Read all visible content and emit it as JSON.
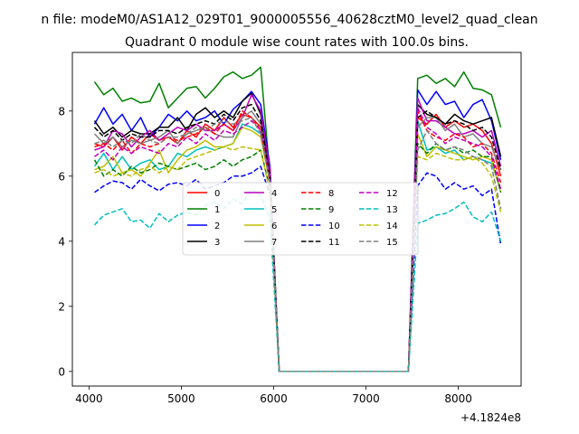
{
  "suptitle": "n file: modeM0/AS1A12_029T01_9000005556_40628cztM0_level2_quad_clean",
  "chart_data": {
    "type": "line",
    "title": "Quadrant 0 module wise count rates with 100.0s bins.",
    "xlabel": "",
    "ylabel": "",
    "offset_text": "+4.1824e8",
    "xlim": [
      3820,
      8680
    ],
    "ylim": [
      -0.45,
      9.8
    ],
    "xticks": [
      4000,
      5000,
      6000,
      7000,
      8000
    ],
    "yticks": [
      0,
      2,
      4,
      6,
      8
    ],
    "grid": false,
    "legend_position": "center",
    "x": [
      4060,
      4160,
      4260,
      4360,
      4460,
      4560,
      4660,
      4760,
      4860,
      4960,
      5060,
      5160,
      5260,
      5360,
      5460,
      5560,
      5660,
      5760,
      5860,
      5960,
      6060,
      6160,
      6260,
      6360,
      6460,
      6560,
      6660,
      6760,
      6860,
      6960,
      7060,
      7160,
      7260,
      7360,
      7460,
      7560,
      7660,
      7760,
      7860,
      7960,
      8060,
      8160,
      8260,
      8360,
      8460
    ],
    "series": [
      {
        "name": "0",
        "color": "#ff0000",
        "dash": "solid",
        "values": [
          7.0,
          6.9,
          7.2,
          6.8,
          7.2,
          7.0,
          7.3,
          7.1,
          7.2,
          7.0,
          7.4,
          7.2,
          7.6,
          7.4,
          7.8,
          7.5,
          7.9,
          7.8,
          7.5,
          5.9,
          0,
          0,
          0,
          0,
          0,
          0,
          0,
          0,
          0,
          0,
          0,
          0,
          0,
          0,
          0,
          7.8,
          7.6,
          7.9,
          7.5,
          7.7,
          7.5,
          7.6,
          7.4,
          7.0,
          6.0
        ]
      },
      {
        "name": "1",
        "color": "#008000",
        "dash": "solid",
        "values": [
          8.9,
          8.5,
          8.7,
          8.3,
          8.4,
          8.25,
          8.3,
          8.85,
          8.1,
          8.4,
          8.7,
          8.75,
          8.4,
          8.7,
          9.05,
          9.2,
          9.0,
          9.1,
          9.35,
          6.0,
          0,
          0,
          0,
          0,
          0,
          0,
          0,
          0,
          0,
          0,
          0,
          0,
          0,
          0,
          0,
          9.0,
          9.1,
          8.85,
          9.0,
          8.75,
          9.2,
          8.7,
          8.65,
          8.5,
          7.5
        ]
      },
      {
        "name": "2",
        "color": "#0000ff",
        "dash": "solid",
        "values": [
          7.6,
          8.1,
          7.6,
          7.9,
          7.4,
          7.8,
          7.2,
          7.5,
          7.9,
          7.7,
          8.0,
          7.7,
          7.8,
          8.0,
          7.6,
          8.05,
          8.3,
          8.6,
          8.2,
          6.3,
          0,
          0,
          0,
          0,
          0,
          0,
          0,
          0,
          0,
          0,
          0,
          0,
          0,
          0,
          0,
          8.65,
          8.2,
          8.6,
          8.2,
          8.3,
          7.8,
          8.2,
          8.35,
          7.7,
          6.5
        ]
      },
      {
        "name": "3",
        "color": "#000000",
        "dash": "solid",
        "values": [
          7.7,
          7.3,
          7.5,
          7.2,
          7.4,
          7.3,
          7.3,
          7.5,
          7.5,
          7.8,
          7.4,
          7.9,
          8.1,
          7.8,
          8.0,
          7.8,
          8.3,
          8.55,
          7.9,
          6.1,
          0,
          0,
          0,
          0,
          0,
          0,
          0,
          0,
          0,
          0,
          0,
          0,
          0,
          0,
          0,
          8.2,
          7.9,
          7.8,
          7.6,
          7.9,
          7.7,
          7.6,
          7.7,
          7.8,
          6.6
        ]
      },
      {
        "name": "4",
        "color": "#bf00bf",
        "dash": "solid",
        "values": [
          6.8,
          6.9,
          7.4,
          7.3,
          6.9,
          7.2,
          7.4,
          7.1,
          7.3,
          7.5,
          7.4,
          7.6,
          7.4,
          7.4,
          7.6,
          7.4,
          7.8,
          8.5,
          8.0,
          6.2,
          0,
          0,
          0,
          0,
          0,
          0,
          0,
          0,
          0,
          0,
          0,
          0,
          0,
          0,
          0,
          8.4,
          7.7,
          7.7,
          7.5,
          7.3,
          7.3,
          7.4,
          7.2,
          7.4,
          6.3
        ]
      },
      {
        "name": "5",
        "color": "#00bfbf",
        "dash": "solid",
        "values": [
          6.3,
          6.7,
          6.2,
          6.6,
          6.2,
          6.4,
          6.5,
          6.2,
          6.3,
          6.7,
          6.6,
          6.8,
          6.9,
          6.8,
          6.9,
          7.0,
          7.6,
          7.5,
          7.3,
          5.9,
          0,
          0,
          0,
          0,
          0,
          0,
          0,
          0,
          0,
          0,
          0,
          0,
          0,
          0,
          0,
          7.7,
          6.8,
          6.9,
          6.7,
          6.8,
          6.5,
          6.6,
          6.5,
          6.4,
          5.6
        ]
      },
      {
        "name": "6",
        "color": "#bfbf00",
        "dash": "solid",
        "values": [
          6.2,
          6.3,
          6.6,
          6.1,
          6.2,
          6.0,
          6.4,
          6.8,
          6.1,
          6.5,
          6.8,
          6.9,
          7.1,
          6.9,
          6.9,
          7.0,
          7.5,
          7.4,
          7.2,
          5.8,
          0,
          0,
          0,
          0,
          0,
          0,
          0,
          0,
          0,
          0,
          0,
          0,
          0,
          0,
          0,
          7.3,
          6.6,
          6.9,
          6.8,
          6.7,
          6.6,
          6.5,
          6.6,
          6.5,
          5.5
        ]
      },
      {
        "name": "7",
        "color": "#808080",
        "dash": "solid",
        "values": [
          7.3,
          7.0,
          7.2,
          6.9,
          7.1,
          7.0,
          7.1,
          7.2,
          7.4,
          7.0,
          7.3,
          7.4,
          7.5,
          7.3,
          7.2,
          7.2,
          7.8,
          8.0,
          7.6,
          5.9,
          0,
          0,
          0,
          0,
          0,
          0,
          0,
          0,
          0,
          0,
          0,
          0,
          0,
          0,
          0,
          7.5,
          7.8,
          7.8,
          7.4,
          7.6,
          7.2,
          7.3,
          7.0,
          6.9,
          6.2
        ]
      },
      {
        "name": "8",
        "color": "#ff0000",
        "dash": "dashed",
        "values": [
          6.9,
          7.0,
          6.8,
          7.1,
          6.7,
          7.0,
          6.9,
          7.0,
          7.2,
          7.1,
          7.2,
          7.3,
          7.5,
          7.3,
          7.6,
          7.4,
          8.0,
          7.8,
          7.4,
          5.8,
          0,
          0,
          0,
          0,
          0,
          0,
          0,
          0,
          0,
          0,
          0,
          0,
          0,
          0,
          0,
          8.0,
          7.4,
          7.2,
          7.1,
          7.3,
          7.2,
          6.9,
          7.0,
          6.7,
          5.8
        ]
      },
      {
        "name": "9",
        "color": "#008000",
        "dash": "dashed",
        "values": [
          6.5,
          6.0,
          6.2,
          6.0,
          6.3,
          6.1,
          6.2,
          6.4,
          6.3,
          6.2,
          6.3,
          6.4,
          6.2,
          6.3,
          6.5,
          6.3,
          6.5,
          6.6,
          6.8,
          5.6,
          0,
          0,
          0,
          0,
          0,
          0,
          0,
          0,
          0,
          0,
          0,
          0,
          0,
          0,
          0,
          7.0,
          6.7,
          7.0,
          6.8,
          6.9,
          6.7,
          6.8,
          6.6,
          6.6,
          5.5
        ]
      },
      {
        "name": "10",
        "color": "#0000ff",
        "dash": "dashed",
        "values": [
          5.5,
          5.7,
          5.85,
          5.8,
          5.6,
          5.9,
          5.7,
          5.55,
          5.75,
          5.8,
          5.7,
          5.9,
          5.6,
          5.7,
          5.8,
          6.0,
          6.0,
          6.1,
          6.3,
          5.4,
          0,
          0,
          0,
          0,
          0,
          0,
          0,
          0,
          0,
          0,
          0,
          0,
          0,
          0,
          0,
          5.7,
          6.1,
          6.0,
          5.6,
          5.8,
          5.6,
          5.7,
          5.4,
          5.6,
          3.9
        ]
      },
      {
        "name": "11",
        "color": "#000000",
        "dash": "dashed",
        "values": [
          7.5,
          7.2,
          7.4,
          7.1,
          7.3,
          7.2,
          7.2,
          7.4,
          7.4,
          7.3,
          7.5,
          7.6,
          7.7,
          7.6,
          7.9,
          7.7,
          8.1,
          8.2,
          7.7,
          6.0,
          0,
          0,
          0,
          0,
          0,
          0,
          0,
          0,
          0,
          0,
          0,
          0,
          0,
          0,
          0,
          7.8,
          8.0,
          7.8,
          7.6,
          7.7,
          7.6,
          7.4,
          7.5,
          7.2,
          6.2
        ]
      },
      {
        "name": "12",
        "color": "#bf00bf",
        "dash": "dashed",
        "values": [
          6.6,
          6.8,
          6.5,
          6.9,
          6.7,
          6.9,
          6.8,
          6.7,
          7.0,
          6.9,
          7.2,
          7.0,
          7.3,
          7.1,
          7.4,
          7.3,
          7.5,
          7.7,
          7.4,
          5.9,
          0,
          0,
          0,
          0,
          0,
          0,
          0,
          0,
          0,
          0,
          0,
          0,
          0,
          0,
          0,
          8.1,
          7.5,
          7.3,
          7.0,
          7.2,
          7.1,
          7.0,
          6.9,
          6.6,
          5.6
        ]
      },
      {
        "name": "13",
        "color": "#00bfbf",
        "dash": "dashed",
        "values": [
          4.5,
          4.8,
          4.9,
          5.0,
          4.6,
          4.65,
          4.4,
          4.85,
          4.6,
          4.8,
          4.9,
          4.8,
          5.1,
          5.2,
          5.0,
          5.3,
          5.15,
          5.6,
          5.4,
          4.7,
          0,
          0,
          0,
          0,
          0,
          0,
          0,
          0,
          0,
          0,
          0,
          0,
          0,
          0,
          0,
          4.55,
          4.65,
          4.8,
          4.85,
          5.0,
          5.2,
          4.75,
          4.6,
          4.9,
          4.0
        ]
      },
      {
        "name": "14",
        "color": "#bfbf00",
        "dash": "dashed",
        "values": [
          6.1,
          6.2,
          6.0,
          6.1,
          6.0,
          6.2,
          6.3,
          6.1,
          6.3,
          6.2,
          6.5,
          6.6,
          6.7,
          6.8,
          6.9,
          6.8,
          6.9,
          6.85,
          6.8,
          5.5,
          0,
          0,
          0,
          0,
          0,
          0,
          0,
          0,
          0,
          0,
          0,
          0,
          0,
          0,
          0,
          6.6,
          6.5,
          6.7,
          6.6,
          6.5,
          6.5,
          6.6,
          6.4,
          6.0,
          4.9
        ]
      },
      {
        "name": "15",
        "color": "#808080",
        "dash": "dashed",
        "values": [
          7.0,
          7.1,
          6.9,
          7.1,
          7.0,
          7.3,
          7.1,
          7.0,
          7.2,
          7.2,
          7.3,
          7.5,
          7.4,
          7.6,
          7.7,
          7.6,
          7.7,
          7.8,
          7.3,
          5.8,
          0,
          0,
          0,
          0,
          0,
          0,
          0,
          0,
          0,
          0,
          0,
          0,
          0,
          0,
          0,
          6.8,
          7.4,
          7.0,
          6.8,
          6.9,
          6.8,
          6.6,
          6.5,
          6.3,
          5.0
        ]
      }
    ]
  }
}
